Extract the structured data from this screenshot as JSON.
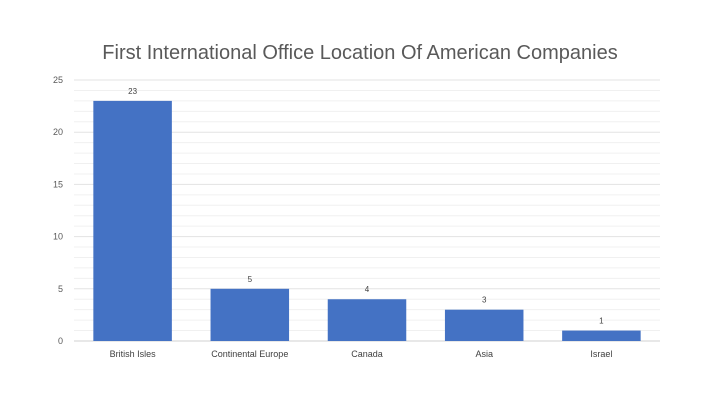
{
  "chart_data": {
    "type": "bar",
    "title": "First International Office Location Of American Companies",
    "xlabel": "",
    "ylabel": "",
    "categories": [
      "British Isles",
      "Continental Europe",
      "Canada",
      "Asia",
      "Israel"
    ],
    "values": [
      23,
      5,
      4,
      3,
      1
    ],
    "ylim": [
      0,
      25
    ],
    "yticks": [
      "0",
      "5",
      "10",
      "15",
      "20",
      "25"
    ],
    "data_labels": [
      "23",
      "5",
      "4",
      "3",
      "1"
    ],
    "grid": true,
    "legend": "none",
    "bar_color": "#4472C4"
  }
}
